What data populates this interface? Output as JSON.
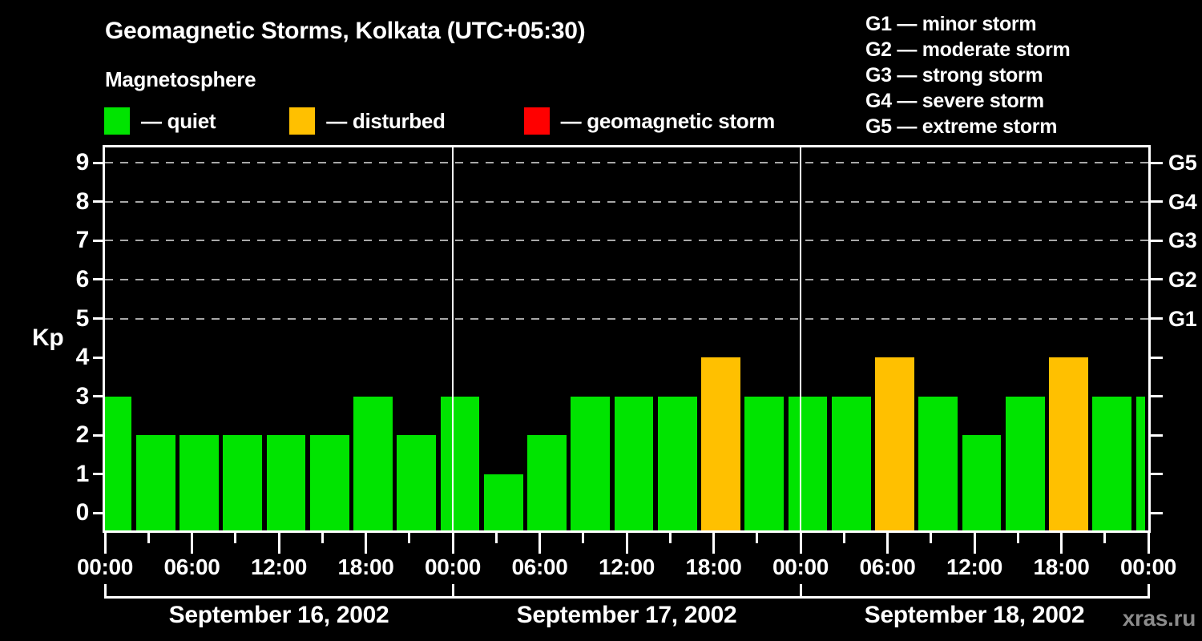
{
  "title": "Geomagnetic Storms, Kolkata (UTC+05:30)",
  "subtitle": "Magnetosphere",
  "legend": {
    "items": [
      {
        "key": "quiet",
        "label": "— quiet"
      },
      {
        "key": "disturbed",
        "label": "— disturbed"
      },
      {
        "key": "storm",
        "label": "— geomagnetic storm"
      }
    ]
  },
  "g_scale_legend": {
    "lines": [
      "G1 — minor storm",
      "G2 — moderate storm",
      "G3 — strong storm",
      "G4 — severe storm",
      "G5 — extreme storm"
    ]
  },
  "watermark": "xras.ru",
  "chart_data": {
    "type": "bar",
    "ylabel": "Kp",
    "ylim": [
      -0.45,
      9.4
    ],
    "y_ticks": [
      0,
      1,
      2,
      3,
      4,
      5,
      6,
      7,
      8,
      9
    ],
    "gridline_values": [
      5,
      6,
      7,
      8,
      9
    ],
    "right_axis_labels": [
      {
        "kp": 5,
        "label": "G1"
      },
      {
        "kp": 6,
        "label": "G2"
      },
      {
        "kp": 7,
        "label": "G3"
      },
      {
        "kp": 8,
        "label": "G4"
      },
      {
        "kp": 9,
        "label": "G5"
      }
    ],
    "hours_span": 72,
    "interval_hours": 3,
    "tick_interval_hours": 3,
    "label_interval_hours": 6,
    "x_tick_labels": [
      "00:00",
      "06:00",
      "12:00",
      "18:00",
      "00:00",
      "06:00",
      "12:00",
      "18:00",
      "00:00",
      "06:00",
      "12:00",
      "18:00",
      "00:00"
    ],
    "days": [
      {
        "date": "September 16, 2002",
        "kp": [
          3,
          2,
          2,
          2,
          2,
          2,
          3,
          2
        ]
      },
      {
        "date": "September 17, 2002",
        "kp": [
          3,
          1,
          2,
          3,
          3,
          3,
          4,
          3
        ]
      },
      {
        "date": "September 18, 2002",
        "kp": [
          3,
          3,
          4,
          3,
          2,
          3,
          4,
          3
        ]
      }
    ],
    "partial_next_bar_value": 3,
    "colors": {
      "quiet": "#00e400",
      "disturbed": "#ffc000",
      "storm": "#ff0000",
      "axis": "#ffffff",
      "grid": "#a8a8a8",
      "background": "#000000",
      "watermark": "#8b8b8b"
    },
    "thresholds": {
      "disturbed_min": 4,
      "storm_min": 5
    },
    "legend_position": "top",
    "grid": "dashed horizontal at Kp 5-9"
  }
}
